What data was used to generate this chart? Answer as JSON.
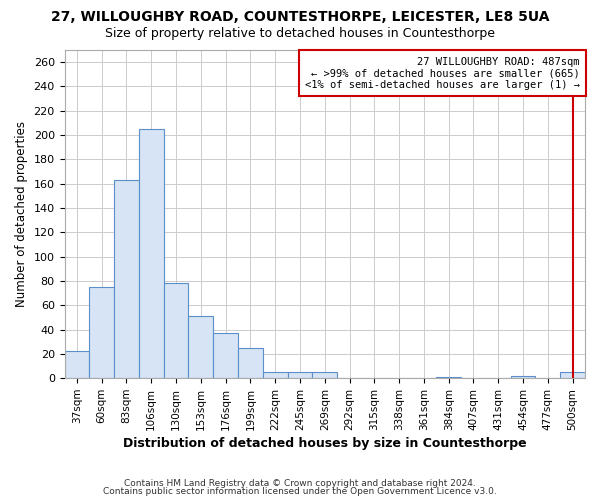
{
  "title1": "27, WILLOUGHBY ROAD, COUNTESTHORPE, LEICESTER, LE8 5UA",
  "title2": "Size of property relative to detached houses in Countesthorpe",
  "xlabel": "Distribution of detached houses by size in Countesthorpe",
  "ylabel": "Number of detached properties",
  "categories": [
    "37sqm",
    "60sqm",
    "83sqm",
    "106sqm",
    "130sqm",
    "153sqm",
    "176sqm",
    "199sqm",
    "222sqm",
    "245sqm",
    "269sqm",
    "292sqm",
    "315sqm",
    "338sqm",
    "361sqm",
    "384sqm",
    "407sqm",
    "431sqm",
    "454sqm",
    "477sqm",
    "500sqm"
  ],
  "values": [
    22,
    75,
    163,
    205,
    78,
    51,
    37,
    25,
    5,
    5,
    5,
    0,
    0,
    0,
    0,
    1,
    0,
    0,
    2,
    0,
    5
  ],
  "bar_fill_color": "#d6e4f5",
  "bar_edge_color": "#5b8fc9",
  "vline_color": "#cc0000",
  "vline_x_idx": 20,
  "legend_line0": "27 WILLOUGHBY ROAD: 487sqm",
  "legend_line1": "← >99% of detached houses are smaller (665)",
  "legend_line2": "<1% of semi-detached houses are larger (1) →",
  "legend_box_color": "#ffffff",
  "legend_box_edge": "#cc0000",
  "footer1": "Contains HM Land Registry data © Crown copyright and database right 2024.",
  "footer2": "Contains public sector information licensed under the Open Government Licence v3.0.",
  "ylim": [
    0,
    270
  ],
  "yticks": [
    0,
    20,
    40,
    60,
    80,
    100,
    120,
    140,
    160,
    180,
    200,
    220,
    240,
    260
  ],
  "background_color": "#ffffff",
  "grid_color": "#cccccc",
  "title1_fontsize": 10,
  "title2_fontsize": 9,
  "bar_width": 1.0
}
